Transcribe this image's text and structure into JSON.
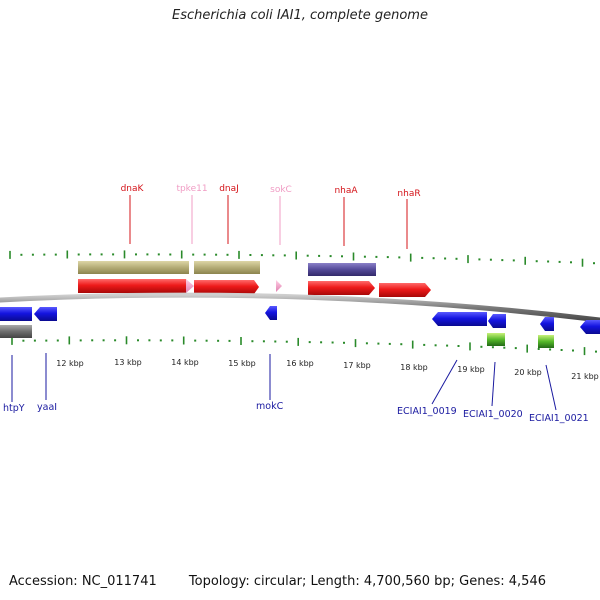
{
  "header": {
    "title": "Escherichia coli IAI1, complete genome"
  },
  "footer": {
    "accession": "Accession: NC_011741",
    "stats": "Topology: circular; Length: 4,700,560 bp; Genes: 4,546"
  },
  "colors": {
    "red_gene": "#e8141a",
    "pink_gene": "#f2a0c8",
    "blue_gene": "#1414d8",
    "green_gene": "#5fbf2a",
    "tan_feature": "#b8b07a",
    "purple_feature": "#5a4f9a",
    "gray_feature": "#707070",
    "tick_green": "#2a8a2a",
    "backbone": "#808080"
  },
  "kbp_labels": [
    "12 kbp",
    "13 kbp",
    "14 kbp",
    "15 kbp",
    "16 kbp",
    "17 kbp",
    "18 kbp",
    "19 kbp",
    "20 kbp",
    "21 kbp"
  ],
  "top_labels": [
    {
      "name": "dnaK",
      "color": "#d4141a"
    },
    {
      "name": "tpke11",
      "color": "#f09cc4"
    },
    {
      "name": "dnaJ",
      "color": "#d4141a"
    },
    {
      "name": "sokC",
      "color": "#f09cc4"
    },
    {
      "name": "nhaA",
      "color": "#d4141a"
    },
    {
      "name": "nhaR",
      "color": "#d4141a"
    }
  ],
  "bottom_labels": [
    "htpY",
    "yaaI",
    "mokC",
    "ECIAI1_0019",
    "ECIAI1_0020",
    "ECIAI1_0021"
  ]
}
